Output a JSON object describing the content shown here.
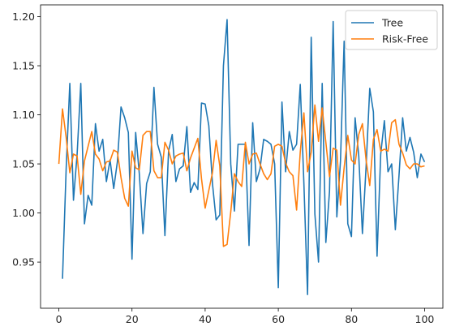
{
  "chart_data": {
    "type": "line",
    "title": "",
    "xlabel": "",
    "ylabel": "",
    "xlim": [
      -5,
      105
    ],
    "ylim": [
      0.903,
      1.212
    ],
    "x_ticks": [
      0,
      20,
      40,
      60,
      80,
      100
    ],
    "y_ticks": [
      0.95,
      1.0,
      1.05,
      1.1,
      1.15,
      1.2
    ],
    "x_tick_labels": [
      "0",
      "20",
      "40",
      "60",
      "80",
      "100"
    ],
    "y_tick_labels": [
      "0.95",
      "1.00",
      "1.05",
      "1.10",
      "1.15",
      "1.20"
    ],
    "grid": false,
    "legend_position": "top-right",
    "x": [
      0,
      1,
      2,
      3,
      4,
      5,
      6,
      7,
      8,
      9,
      10,
      11,
      12,
      13,
      14,
      15,
      16,
      17,
      18,
      19,
      20,
      21,
      22,
      23,
      24,
      25,
      26,
      27,
      28,
      29,
      30,
      31,
      32,
      33,
      34,
      35,
      36,
      37,
      38,
      39,
      40,
      41,
      42,
      43,
      44,
      45,
      46,
      47,
      48,
      49,
      50,
      51,
      52,
      53,
      54,
      55,
      56,
      57,
      58,
      59,
      60,
      61,
      62,
      63,
      64,
      65,
      66,
      67,
      68,
      69,
      70,
      71,
      72,
      73,
      74,
      75,
      76,
      77,
      78,
      79,
      80,
      81,
      82,
      83,
      84,
      85,
      86,
      87,
      88,
      89,
      90,
      91,
      92,
      93,
      94,
      95,
      96,
      97,
      98,
      99,
      100
    ],
    "series": [
      {
        "name": "Tree",
        "color": "#1f77b4",
        "x": [
          1,
          2,
          3,
          4,
          5,
          6,
          7,
          8,
          9,
          10,
          11,
          12,
          13,
          14,
          15,
          16,
          17,
          18,
          19,
          20,
          21,
          22,
          23,
          24,
          25,
          26,
          27,
          28,
          29,
          30,
          31,
          32,
          33,
          34,
          35,
          36,
          37,
          38,
          39,
          40,
          41,
          42,
          43,
          44,
          45,
          46,
          47,
          48,
          49,
          50,
          51,
          52,
          53,
          54,
          55,
          56,
          57,
          58,
          59,
          60,
          61,
          62,
          63,
          64,
          65,
          66,
          67,
          68,
          69,
          70,
          71,
          72,
          73,
          74,
          75,
          76,
          77,
          78,
          79,
          80,
          81,
          82,
          83,
          84,
          85,
          86,
          87,
          88,
          89,
          90,
          91,
          92,
          93,
          94,
          95,
          96,
          97,
          98,
          99,
          100
        ],
        "values": [
          0.933,
          1.045,
          1.132,
          1.013,
          1.06,
          1.132,
          0.989,
          1.018,
          1.008,
          1.091,
          1.063,
          1.075,
          1.032,
          1.054,
          1.025,
          1.052,
          1.108,
          1.097,
          1.082,
          0.953,
          1.082,
          1.04,
          0.979,
          1.03,
          1.042,
          1.128,
          1.07,
          1.057,
          0.977,
          1.063,
          1.08,
          1.032,
          1.045,
          1.048,
          1.088,
          1.021,
          1.031,
          1.024,
          1.112,
          1.111,
          1.089,
          1.03,
          0.993,
          0.998,
          1.15,
          1.197,
          1.05,
          1.002,
          1.07,
          1.07,
          1.07,
          0.967,
          1.092,
          1.032,
          1.045,
          1.075,
          1.073,
          1.07,
          1.05,
          0.924,
          1.113,
          1.042,
          1.083,
          1.064,
          1.07,
          1.131,
          1.03,
          0.917,
          1.179,
          0.999,
          0.95,
          1.132,
          0.97,
          1.022,
          1.195,
          0.996,
          1.053,
          1.175,
          0.989,
          0.976,
          1.097,
          1.058,
          0.979,
          1.047,
          1.127,
          1.103,
          0.956,
          1.06,
          1.094,
          1.042,
          1.05,
          0.983,
          1.038,
          1.097,
          1.063,
          1.077,
          1.062,
          1.036,
          1.06,
          1.052
        ]
      },
      {
        "name": "Risk-Free",
        "color": "#ff7f0e",
        "x": [
          0,
          1,
          2,
          3,
          4,
          5,
          6,
          7,
          8,
          9,
          10,
          11,
          12,
          13,
          14,
          15,
          16,
          17,
          18,
          19,
          20,
          21,
          22,
          23,
          24,
          25,
          26,
          27,
          28,
          29,
          30,
          31,
          32,
          33,
          34,
          35,
          36,
          37,
          38,
          39,
          40,
          41,
          42,
          43,
          44,
          45,
          46,
          47,
          48,
          49,
          50,
          51,
          52,
          53,
          54,
          55,
          56,
          57,
          58,
          59,
          60,
          61,
          62,
          63,
          64,
          65,
          66,
          67,
          68,
          69,
          70,
          71,
          72,
          73,
          74,
          75,
          76,
          77,
          78,
          79,
          80,
          81,
          82,
          83,
          84,
          85,
          86,
          87,
          88,
          89,
          90,
          91,
          92,
          93,
          94,
          95,
          96,
          97,
          98,
          99,
          100
        ],
        "values": [
          1.05,
          1.106,
          1.077,
          1.041,
          1.06,
          1.058,
          1.019,
          1.053,
          1.068,
          1.083,
          1.06,
          1.055,
          1.043,
          1.052,
          1.053,
          1.064,
          1.062,
          1.036,
          1.015,
          1.007,
          1.063,
          1.046,
          1.044,
          1.079,
          1.083,
          1.083,
          1.043,
          1.036,
          1.036,
          1.072,
          1.064,
          1.05,
          1.058,
          1.06,
          1.061,
          1.043,
          1.056,
          1.066,
          1.076,
          1.035,
          1.005,
          1.023,
          1.041,
          1.074,
          1.048,
          0.966,
          0.968,
          1.001,
          1.04,
          1.032,
          1.027,
          1.072,
          1.05,
          1.06,
          1.061,
          1.05,
          1.04,
          1.034,
          1.04,
          1.068,
          1.07,
          1.068,
          1.051,
          1.042,
          1.038,
          1.003,
          1.062,
          1.102,
          1.042,
          1.062,
          1.11,
          1.073,
          1.107,
          1.072,
          1.037,
          1.066,
          1.064,
          1.008,
          1.046,
          1.079,
          1.054,
          1.05,
          1.08,
          1.091,
          1.054,
          1.028,
          1.075,
          1.085,
          1.063,
          1.065,
          1.063,
          1.092,
          1.095,
          1.07,
          1.061,
          1.049,
          1.045,
          1.05,
          1.05,
          1.047,
          1.048
        ]
      }
    ]
  }
}
